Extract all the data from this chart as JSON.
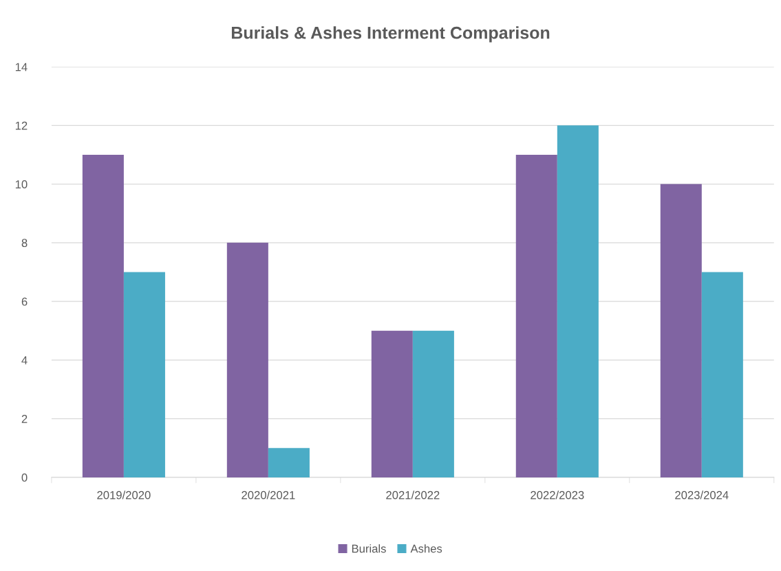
{
  "chart_data": {
    "type": "bar",
    "title": "Burials & Ashes Interment Comparison",
    "categories": [
      "2019/2020",
      "2020/2021",
      "2021/2022",
      "2022/2023",
      "2023/2024"
    ],
    "series": [
      {
        "name": "Burials",
        "color": "#8064a2",
        "values": [
          11,
          8,
          5,
          11,
          10
        ]
      },
      {
        "name": "Ashes",
        "color": "#4bacc6",
        "values": [
          7,
          1,
          5,
          12,
          7
        ]
      }
    ],
    "ylim": [
      0,
      14
    ],
    "yticks": [
      0,
      2,
      4,
      6,
      8,
      10,
      12,
      14
    ],
    "grid": "y",
    "legend": "bottom"
  }
}
